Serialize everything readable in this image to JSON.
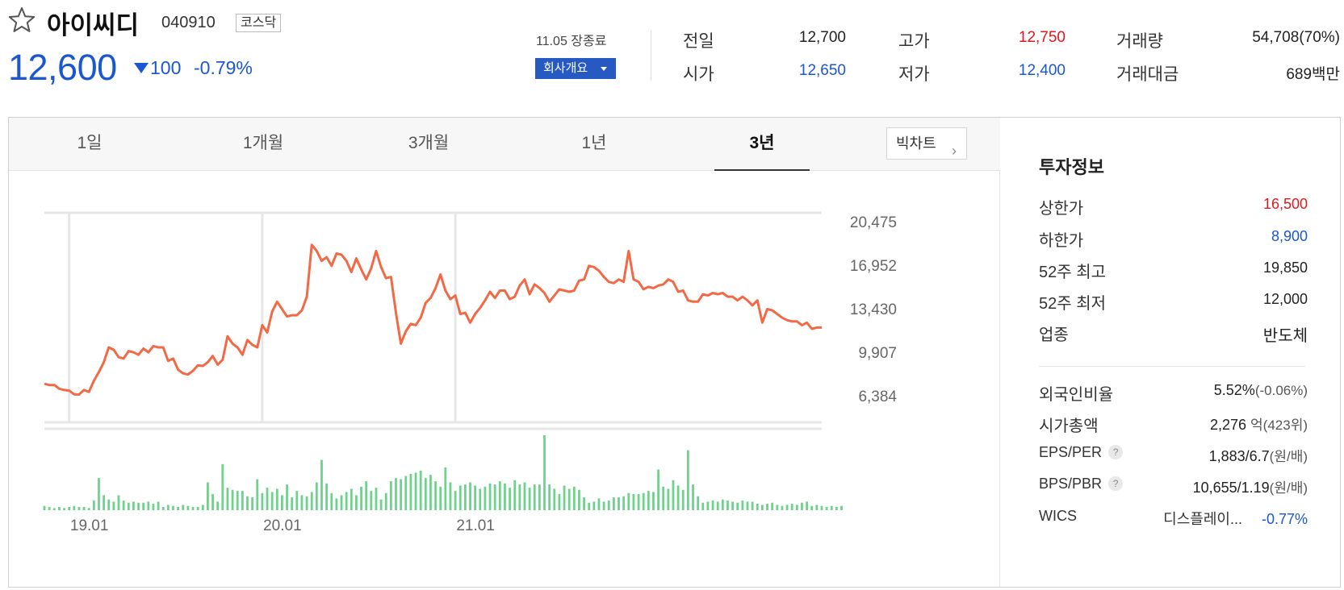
{
  "header": {
    "name": "아이씨디",
    "code": "040910",
    "market": "코스닥",
    "price": "12,600",
    "change_amount": "100",
    "change_rate": "-0.79%",
    "close_label": "11.05 장종료",
    "company_button": "회사개요"
  },
  "quote": {
    "prev_label": "전일",
    "prev_value": "12,700",
    "open_label": "시가",
    "open_value": "12,650",
    "high_label": "고가",
    "high_value": "12,750",
    "low_label": "저가",
    "low_value": "12,400",
    "volume_label": "거래량",
    "volume_value": "54,708(70%)",
    "amount_label": "거래대금",
    "amount_value": "689",
    "amount_unit": "백만"
  },
  "tabs": [
    {
      "label": "1일",
      "active": false
    },
    {
      "label": "1개월",
      "active": false
    },
    {
      "label": "3개월",
      "active": false
    },
    {
      "label": "1년",
      "active": false
    },
    {
      "label": "3년",
      "active": true
    }
  ],
  "bigchart_label": "빅차트",
  "colors": {
    "down": "#1b57d1",
    "up": "#e1181b",
    "line": "#f26a45",
    "volume": "#6fd28c",
    "button": "#2759c2"
  },
  "chart_data": {
    "type": "line",
    "period": "3년",
    "y_ticks": [
      "20,475",
      "16,952",
      "13,430",
      "9,907",
      "6,384"
    ],
    "ylim": [
      6384,
      20475
    ],
    "x_ticks": [
      "19.01",
      "20.01",
      "21.01"
    ],
    "price_series": [
      7350,
      7250,
      7260,
      6950,
      6850,
      6800,
      6500,
      6480,
      6850,
      6700,
      7600,
      8300,
      9100,
      10300,
      10100,
      9500,
      9400,
      10000,
      9900,
      9700,
      10200,
      9900,
      10400,
      10300,
      10300,
      9200,
      9400,
      8500,
      8200,
      8100,
      8400,
      8850,
      8800,
      9100,
      9600,
      8900,
      9300,
      11200,
      10600,
      10300,
      9700,
      10900,
      10500,
      10300,
      12100,
      11500,
      13200,
      14000,
      13400,
      12800,
      12900,
      12900,
      13300,
      14400,
      18600,
      18100,
      17300,
      17600,
      16900,
      17900,
      17800,
      17300,
      16400,
      17500,
      16600,
      15800,
      16700,
      18100,
      16800,
      15900,
      16000,
      13100,
      10600,
      11600,
      12200,
      12100,
      12700,
      13900,
      14300,
      15100,
      16200,
      14900,
      14200,
      14500,
      13000,
      13100,
      12300,
      13000,
      13500,
      14100,
      14800,
      14300,
      14900,
      14900,
      14200,
      14400,
      15300,
      15800,
      14600,
      15400,
      15100,
      14700,
      14000,
      14500,
      15000,
      14900,
      14800,
      14900,
      15700,
      15800,
      16900,
      16800,
      16500,
      16000,
      15600,
      15500,
      15800,
      15600,
      18100,
      15800,
      15600,
      15000,
      15200,
      15100,
      15300,
      15400,
      15800,
      15600,
      14800,
      14900,
      14100,
      14000,
      14000,
      14600,
      14500,
      14700,
      14600,
      14700,
      14400,
      14400,
      14100,
      14400,
      14100,
      13700,
      14100,
      12300,
      13400,
      13300,
      13000,
      12700,
      12500,
      12400,
      12400,
      12100,
      12300,
      11800,
      11900,
      11900
    ],
    "volume_series": [
      4,
      3,
      2,
      3,
      2,
      3,
      4,
      3,
      3,
      2,
      9,
      30,
      14,
      10,
      8,
      14,
      9,
      7,
      8,
      7,
      7,
      8,
      6,
      8,
      3,
      5,
      4,
      3,
      5,
      4,
      3,
      3,
      5,
      26,
      15,
      8,
      43,
      21,
      19,
      18,
      18,
      13,
      12,
      29,
      16,
      21,
      17,
      20,
      14,
      24,
      12,
      18,
      14,
      13,
      17,
      26,
      47,
      25,
      16,
      11,
      14,
      17,
      20,
      14,
      22,
      27,
      18,
      21,
      10,
      16,
      27,
      30,
      29,
      32,
      34,
      35,
      37,
      30,
      33,
      27,
      22,
      40,
      26,
      18,
      23,
      24,
      26,
      23,
      20,
      22,
      25,
      24,
      27,
      25,
      21,
      28,
      24,
      26,
      21,
      24,
      24,
      70,
      24,
      20,
      15,
      23,
      20,
      22,
      19,
      12,
      7,
      8,
      11,
      8,
      9,
      12,
      12,
      13,
      16,
      15,
      15,
      16,
      18,
      17,
      38,
      22,
      20,
      28,
      23,
      19,
      56,
      24,
      13,
      7,
      8,
      9,
      8,
      10,
      9,
      8,
      7,
      9,
      8,
      8,
      6,
      5,
      6,
      7,
      5,
      4,
      5,
      6,
      5,
      7,
      8,
      4,
      5,
      4,
      3,
      4,
      3,
      4
    ]
  },
  "investment": {
    "title": "투자정보",
    "rows": [
      {
        "label": "상한가",
        "value": "16,500",
        "color": "red"
      },
      {
        "label": "하한가",
        "value": "8,900",
        "color": "blue"
      },
      {
        "label": "52주 최고",
        "value": "19,850"
      },
      {
        "label": "52주 최저",
        "value": "12,000"
      },
      {
        "label": "업종",
        "value": "반도체"
      }
    ],
    "foreign_label": "외국인비율",
    "foreign_value": "5.52%",
    "foreign_change": "(-0.06%)",
    "cap_label": "시가총액",
    "cap_value": "2,276",
    "cap_unit": "억(423위)",
    "eps_label": "EPS/PER",
    "eps_value": "1,883/6.7",
    "eps_unit": "(원/배)",
    "bps_label": "BPS/PBR",
    "bps_value": "10,655/1.19",
    "bps_unit": "(원/배)",
    "wics_label": "WICS",
    "wics_value": "디스플레이...",
    "wics_change": "-0.77%",
    "help_mark": "?"
  }
}
